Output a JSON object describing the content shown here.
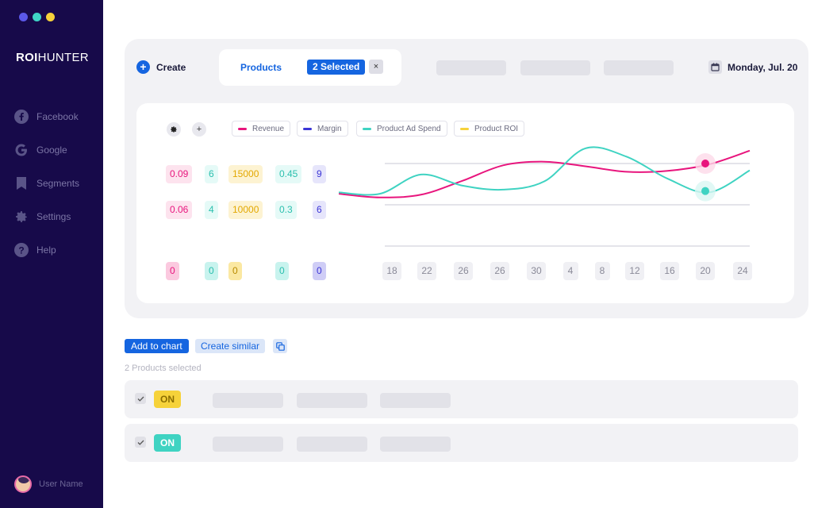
{
  "app": {
    "logo_bold": "ROI",
    "logo_light": "HUNTER",
    "window_dots": [
      "#5b58e8",
      "#3fd6c6",
      "#f6d23a"
    ]
  },
  "sidebar": {
    "items": [
      {
        "label": "Facebook",
        "icon": "facebook-icon"
      },
      {
        "label": "Google",
        "icon": "google-icon"
      },
      {
        "label": "Segments",
        "icon": "bookmark-icon"
      },
      {
        "label": "Settings",
        "icon": "gear-icon"
      },
      {
        "label": "Help",
        "icon": "help-icon"
      }
    ],
    "user_name": "User Name"
  },
  "header": {
    "create_label": "Create",
    "tab_products": "Products",
    "selected_label": "2 Selected",
    "close_symbol": "×",
    "date": "Monday, Jul. 20"
  },
  "chart": {
    "legend": [
      {
        "name": "Revenue",
        "color": "#e8157d"
      },
      {
        "name": "Margin",
        "color": "#3b35d6"
      },
      {
        "name": "Product Ad Spend",
        "color": "#3fd3c2"
      },
      {
        "name": "Product ROI",
        "color": "#f6d23a"
      }
    ],
    "y_columns": [
      {
        "top": "0.09",
        "mid": "0.06",
        "bottom": "0"
      },
      {
        "top": "6",
        "mid": "4",
        "bottom": "0"
      },
      {
        "top": "15000",
        "mid": "10000",
        "bottom": "0"
      },
      {
        "top": "0.45",
        "mid": "0.3",
        "bottom": "0"
      },
      {
        "top": "9",
        "mid": "6",
        "bottom": "0"
      }
    ]
  },
  "chart_data": {
    "type": "line",
    "x": [
      "18",
      "22",
      "26",
      "26",
      "30",
      "4",
      "8",
      "12",
      "16",
      "20",
      "24"
    ],
    "series": [
      {
        "name": "Revenue",
        "color": "#e8157d",
        "values": [
          0.057,
          0.053,
          0.056,
          0.071,
          0.088,
          0.092,
          0.087,
          0.081,
          0.082,
          0.089,
          0.104
        ]
      },
      {
        "name": "Product Ad Spend",
        "color": "#3fd3c2",
        "values": [
          3.9,
          3.8,
          5.2,
          4.4,
          4.1,
          4.7,
          7.1,
          6.5,
          4.9,
          3.9,
          5.5
        ]
      }
    ],
    "highlight": {
      "x": "20",
      "revenue": 0.09,
      "ad_spend": 4
    }
  },
  "actions": {
    "add_to_chart": "Add to chart",
    "create_similar": "Create similar",
    "selected_count": "2 Products selected"
  },
  "rows": [
    {
      "status": "ON",
      "color": "#f6d23a",
      "text_color": "#8a6d00"
    },
    {
      "status": "ON",
      "color": "#3fd3c2",
      "text_color": "#ffffff"
    }
  ]
}
